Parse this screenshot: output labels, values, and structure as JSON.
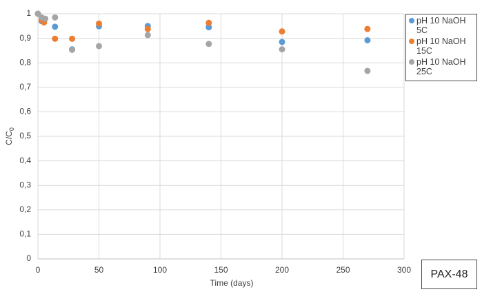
{
  "chart_data": {
    "type": "scatter",
    "x_label": "Time (days)",
    "y_label": "C/C",
    "y_label_sub": "0",
    "annotation": "PAX-48",
    "xlim": [
      0,
      300
    ],
    "xticks": [
      0,
      50,
      100,
      150,
      200,
      250,
      300
    ],
    "ylim": [
      0,
      1
    ],
    "yticks": [
      0,
      {
        "value": 0.1,
        "label": "0,1"
      },
      {
        "value": 0.2,
        "label": "0,2"
      },
      {
        "value": 0.3,
        "label": "0,3"
      },
      {
        "value": 0.4,
        "label": "0,4"
      },
      {
        "value": 0.5,
        "label": "0,5"
      },
      {
        "value": 0.6,
        "label": "0,6"
      },
      {
        "value": 0.7,
        "label": "0,7"
      },
      {
        "value": 0.8,
        "label": "0,8"
      },
      {
        "value": 0.9,
        "label": "0,9"
      },
      1
    ],
    "grid": true,
    "series": [
      {
        "name": "pH 10 NaOH 5C",
        "color": "#5b9bd5",
        "x": [
          0,
          3,
          5,
          14,
          28,
          50,
          90,
          140,
          200,
          270
        ],
        "values": [
          1.0,
          0.97,
          0.965,
          0.947,
          0.855,
          0.949,
          0.95,
          0.945,
          0.885,
          0.892
        ]
      },
      {
        "name": "pH 10 NaOH 15C",
        "color": "#ed7d31",
        "x": [
          0,
          3,
          5,
          14,
          28,
          50,
          90,
          140,
          200,
          270
        ],
        "values": [
          1.0,
          0.975,
          0.965,
          0.898,
          0.898,
          0.96,
          0.938,
          0.963,
          0.928,
          0.938
        ]
      },
      {
        "name": "pH 10 NaOH 25C",
        "color": "#a5a5a5",
        "x": [
          0,
          3,
          6,
          14,
          28,
          50,
          90,
          140,
          200,
          270
        ],
        "values": [
          1.0,
          0.985,
          0.98,
          0.985,
          0.853,
          0.868,
          0.913,
          0.877,
          0.855,
          0.767
        ]
      }
    ]
  }
}
